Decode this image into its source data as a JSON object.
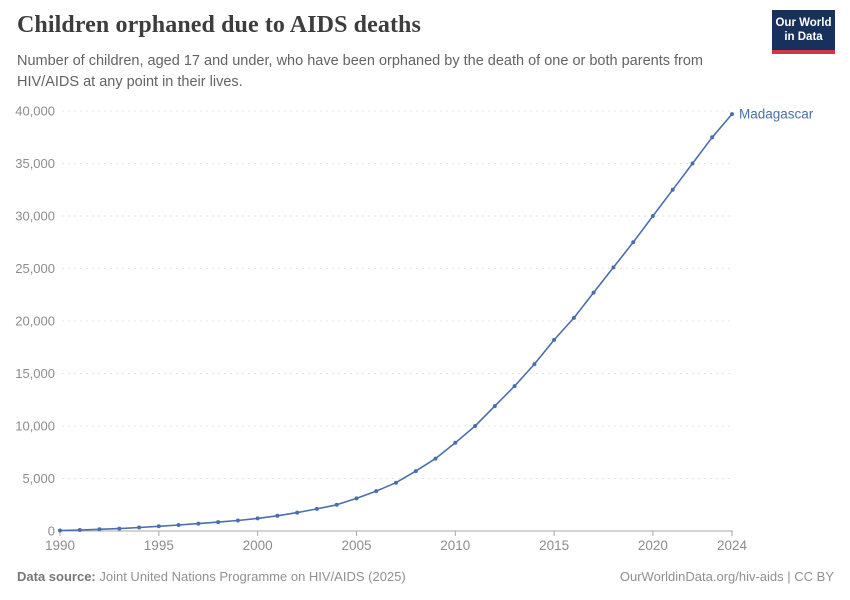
{
  "header": {
    "title": "Children orphaned due to AIDS deaths",
    "subtitle": "Number of children, aged 17 and under, who have been orphaned by the death of one or both parents from HIV/AIDS at any point in their lives.",
    "logo": {
      "line1": "Our World",
      "line2": "in Data"
    }
  },
  "footer": {
    "datasource_label": "Data source:",
    "datasource_value": " Joint United Nations Programme on HIV/AIDS (2025)",
    "attribution": "OurWorldinData.org/hiv-aids | CC BY"
  },
  "chart_data": {
    "type": "line",
    "title": "Children orphaned due to AIDS deaths",
    "xlabel": "",
    "ylabel": "",
    "xlim": [
      1990,
      2024
    ],
    "ylim": [
      0,
      40000
    ],
    "grid": "horizontal-dashed",
    "legend_position": "end-of-line-label",
    "x_ticks": [
      1990,
      1995,
      2000,
      2005,
      2010,
      2015,
      2020,
      2024
    ],
    "y_ticks": [
      0,
      5000,
      10000,
      15000,
      20000,
      25000,
      30000,
      35000,
      40000
    ],
    "series": [
      {
        "name": "Madagascar",
        "x": [
          1990,
          1991,
          1992,
          1993,
          1994,
          1995,
          1996,
          1997,
          1998,
          1999,
          2000,
          2001,
          2002,
          2003,
          2004,
          2005,
          2006,
          2007,
          2008,
          2009,
          2010,
          2011,
          2012,
          2013,
          2014,
          2015,
          2016,
          2017,
          2018,
          2019,
          2020,
          2021,
          2022,
          2023,
          2024
        ],
        "values": [
          50,
          100,
          160,
          230,
          330,
          450,
          570,
          700,
          850,
          1000,
          1200,
          1450,
          1750,
          2100,
          2500,
          3100,
          3800,
          4600,
          5700,
          6900,
          8400,
          10000,
          11900,
          13800,
          15900,
          18200,
          20300,
          22700,
          25100,
          27500,
          30000,
          32500,
          35000,
          37500,
          39700
        ]
      }
    ],
    "colors": {
      "line": "#4b6eae",
      "entity_label": "#4b6eae",
      "gridline": "#e3e3e3",
      "axis": "#a8a8a8",
      "tick_label": "#8c8c8c"
    }
  }
}
